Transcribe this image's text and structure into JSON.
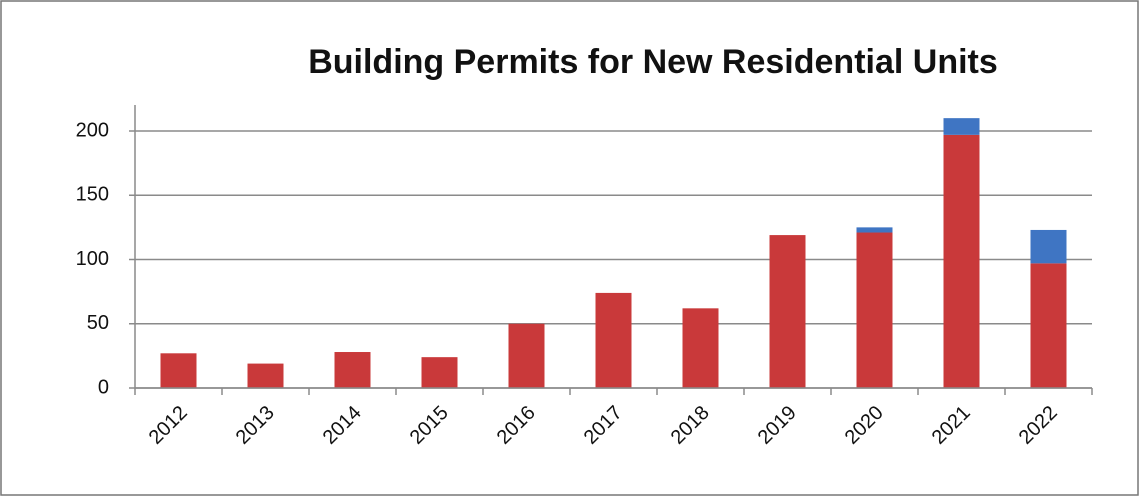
{
  "chart_data": {
    "type": "stacked_bar",
    "title": "Building Permits for New Residential Units",
    "categories": [
      "2012",
      "2013",
      "2014",
      "2015",
      "2016",
      "2017",
      "2018",
      "2019",
      "2020",
      "2021",
      "2022"
    ],
    "series": [
      {
        "color": "#c9393a",
        "values": [
          27,
          19,
          28,
          24,
          50,
          74,
          62,
          119,
          121,
          197,
          97
        ]
      },
      {
        "color": "#3f75c3",
        "values": [
          0,
          0,
          0,
          0,
          0,
          0,
          0,
          0,
          4,
          13,
          26
        ]
      }
    ],
    "ylim": [
      0,
      200
    ],
    "yticks": [
      0,
      50,
      100,
      150,
      200
    ],
    "grid": true
  }
}
